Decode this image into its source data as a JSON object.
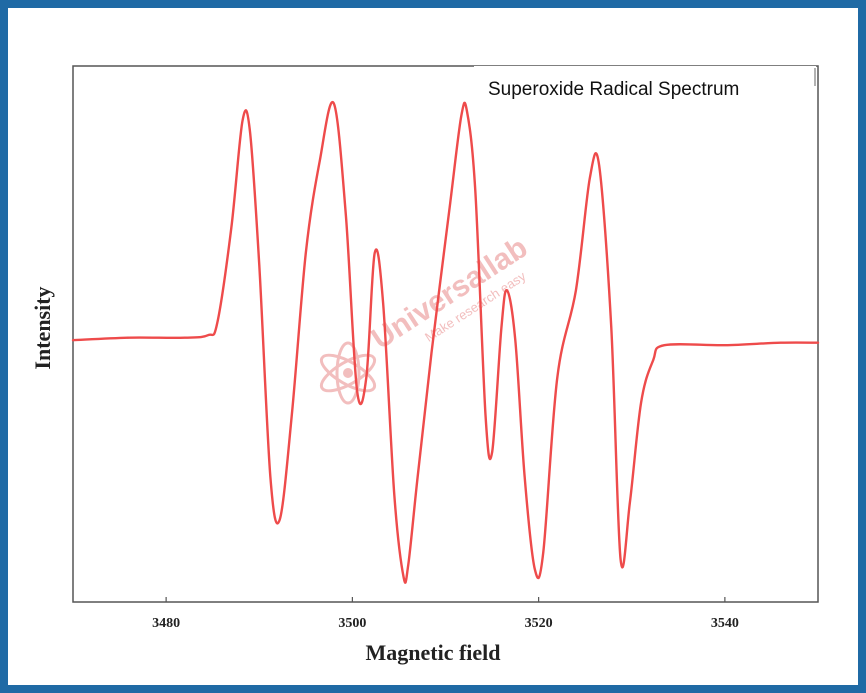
{
  "chart_data": {
    "type": "line",
    "title": "Superoxide Radical Spectrum",
    "xlabel": "Magnetic field",
    "ylabel": "Intensity",
    "xlim": [
      3470,
      3550
    ],
    "ylim": [
      -1.05,
      1.1
    ],
    "xticks": [
      3480,
      3500,
      3520,
      3540
    ],
    "y_ticks_labeled": false,
    "grid": false,
    "legend_position": "top-right",
    "line_color": "#ee4b4b",
    "series": [
      {
        "x": [
          3470,
          3476,
          3482,
          3484.5,
          3485.5,
          3487,
          3488.2,
          3489,
          3490,
          3491.2,
          3492.2,
          3493.5,
          3495,
          3496.5,
          3498,
          3499.3,
          3500.5,
          3501.5,
          3502.4,
          3503.3,
          3504.5,
          3505.5,
          3506,
          3507,
          3508.5,
          3510.5,
          3511.7,
          3512.3,
          3513.2,
          3514.3,
          3515,
          3516,
          3516.6,
          3517.5,
          3518.5,
          3519.6,
          3520.5,
          3522,
          3524,
          3525.5,
          3526.5,
          3527.8,
          3528.8,
          3529.8,
          3531,
          3532.3,
          3533.5,
          3540,
          3546,
          3550
        ],
        "y": [
          0.0,
          0.01,
          0.01,
          0.02,
          0.07,
          0.45,
          0.88,
          0.84,
          0.3,
          -0.55,
          -0.72,
          -0.3,
          0.35,
          0.72,
          0.95,
          0.5,
          -0.2,
          -0.15,
          0.35,
          0.15,
          -0.62,
          -0.95,
          -0.9,
          -0.55,
          -0.05,
          0.55,
          0.9,
          0.92,
          0.6,
          -0.3,
          -0.45,
          0.05,
          0.2,
          0.0,
          -0.55,
          -0.92,
          -0.85,
          -0.15,
          0.2,
          0.65,
          0.7,
          0.05,
          -0.88,
          -0.65,
          -0.25,
          -0.08,
          -0.02,
          -0.02,
          -0.01,
          -0.01
        ]
      }
    ]
  },
  "watermark": {
    "brand": "Universallab",
    "tagline": "Make research easy",
    "color": "#f0b3b3"
  }
}
